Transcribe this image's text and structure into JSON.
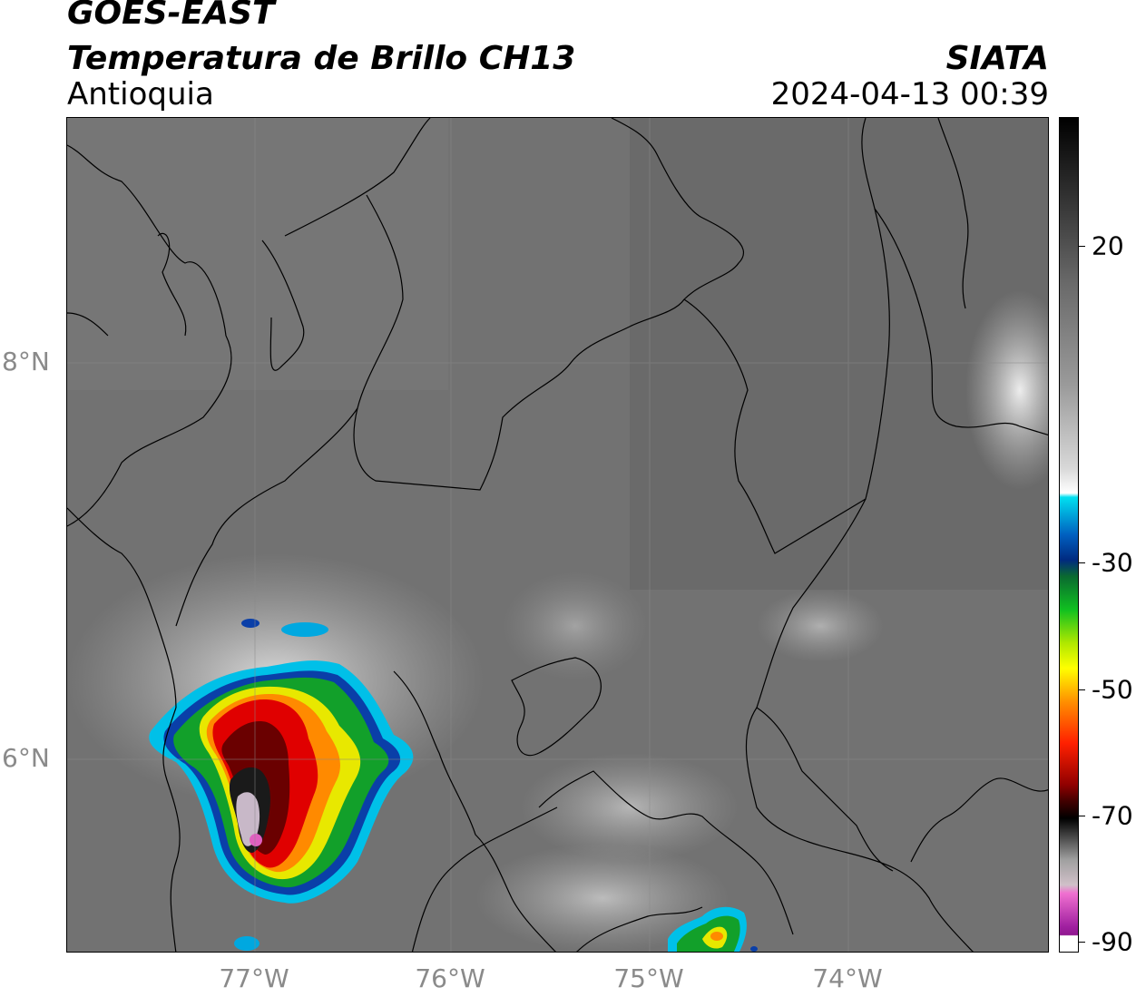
{
  "title": {
    "satellite": "GOES-EAST",
    "product": "Temperatura de Brillo CH13",
    "region": "Antioquia",
    "agency": "SIATA",
    "timestamp": "2024-04-13 00:39"
  },
  "map": {
    "lat_labels": [
      "8°N",
      "6°N"
    ],
    "lon_labels": [
      "77°W",
      "76°W",
      "75°W",
      "74°W"
    ],
    "colors": {
      "background_gray": "#6f6f6f",
      "border_lines": "#000000"
    }
  },
  "colorbar": {
    "tick_labels": [
      "20",
      "-30",
      "-50",
      "-70",
      "-90"
    ],
    "ticks": [
      20,
      -30,
      -50,
      -70,
      -90
    ],
    "range": [
      -90,
      40
    ],
    "colors": {
      "warm_gray": "#6a6a6a",
      "white": "#ffffff",
      "cyan": "#00c8e8",
      "blue": "#003a9a",
      "green": "#10a020",
      "yellow": "#f0f000",
      "orange": "#ff8000",
      "red": "#e00000",
      "dark_red": "#600000",
      "black": "#000000",
      "magenta": "#e060c0",
      "purple": "#8a1a8a"
    }
  }
}
